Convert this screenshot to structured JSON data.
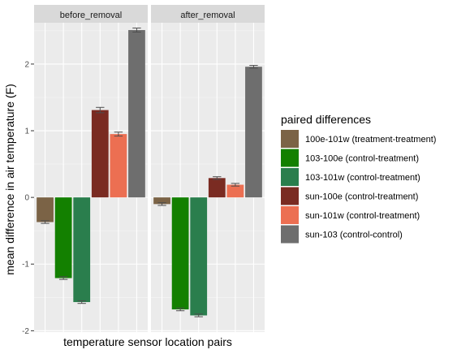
{
  "chart_data": {
    "type": "bar",
    "xlabel": "temperature sensor location pairs",
    "ylabel": "mean difference in air temperature (F)",
    "ylim": [
      -2.02,
      2.62
    ],
    "yticks": [
      -2,
      -1,
      0,
      1,
      2
    ],
    "grid": true,
    "legend_position": "right",
    "legend_title": "paired differences",
    "categories": [
      "100e-101w (treatment-treatment)",
      "103-100e (control-treatment)",
      "103-101w (control-treatment)",
      "sun-100e (control-treatment)",
      "sun-101w (control-treatment)",
      "sun-103 (control-control)"
    ],
    "colors": [
      "#7b6346",
      "#138000",
      "#2a7e4d",
      "#7a2b22",
      "#ec6f52",
      "#6e6e6e"
    ],
    "facets": [
      {
        "label": "before_removal",
        "values": [
          -0.37,
          -1.21,
          -1.57,
          1.31,
          0.95,
          2.51
        ],
        "errors": [
          0.02,
          0.02,
          0.02,
          0.04,
          0.03,
          0.03
        ]
      },
      {
        "label": "after_removal",
        "values": [
          -0.1,
          -1.68,
          -1.77,
          0.29,
          0.19,
          1.96
        ],
        "errors": [
          0.02,
          0.02,
          0.02,
          0.02,
          0.02,
          0.02
        ]
      }
    ]
  }
}
